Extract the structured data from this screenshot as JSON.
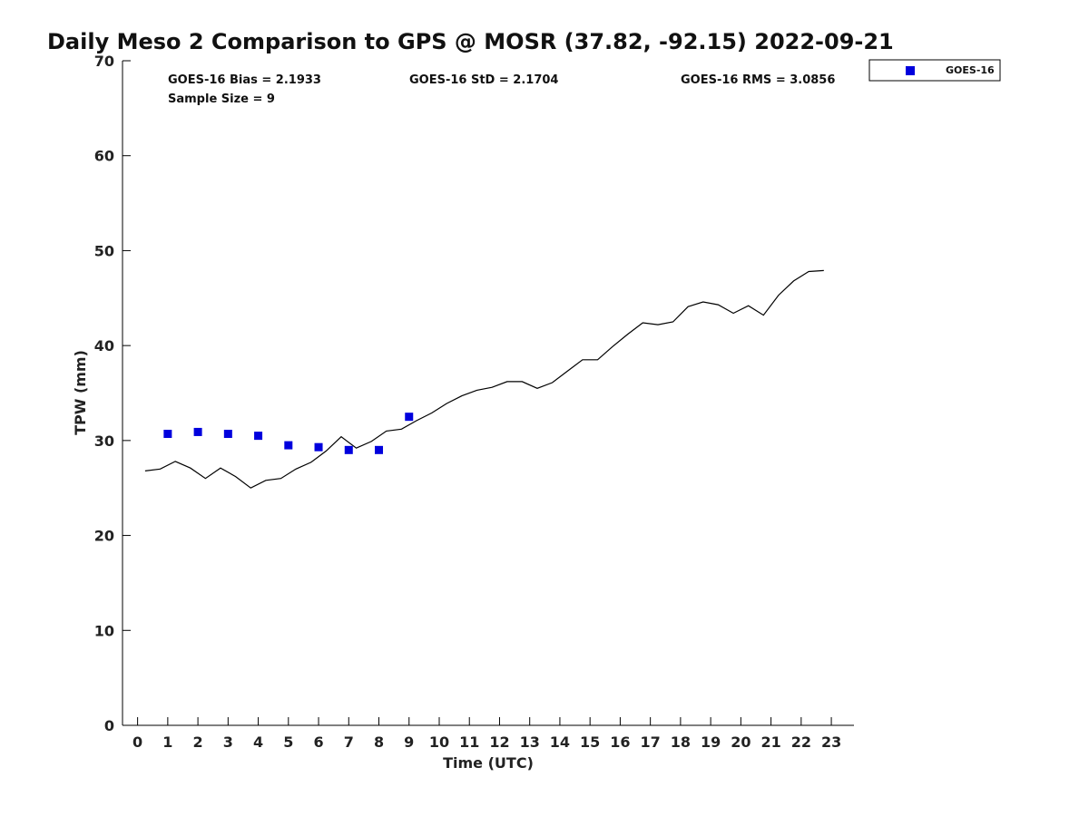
{
  "chart_data": {
    "type": "scatter",
    "title": "Daily Meso 2 Comparison to GPS @ MOSR (37.82, -92.15) 2022-09-21",
    "xlabel": "Time (UTC)",
    "ylabel": "TPW (mm)",
    "xlim": [
      -0.5,
      23.75
    ],
    "ylim": [
      0,
      70
    ],
    "xticks": [
      0,
      1,
      2,
      3,
      4,
      5,
      6,
      7,
      8,
      9,
      10,
      11,
      12,
      13,
      14,
      15,
      16,
      17,
      18,
      19,
      20,
      21,
      22,
      23
    ],
    "yticks": [
      0,
      10,
      20,
      30,
      40,
      50,
      60,
      70
    ],
    "grid": false,
    "legend_position": "top-right outside",
    "colors": {
      "goes": "#0000dd",
      "gps": "#000000"
    },
    "stats": {
      "bias": "GOES-16 Bias = 2.1933",
      "std": "GOES-16 StD = 2.1704",
      "rms": "GOES-16 RMS = 3.0856",
      "sample": "Sample Size = 9"
    },
    "series": [
      {
        "name": "GOES-16",
        "style": "square-markers",
        "x": [
          1,
          2,
          3,
          4,
          5,
          6,
          7,
          8,
          9
        ],
        "y": [
          30.7,
          30.9,
          30.7,
          30.5,
          29.5,
          29.3,
          29.0,
          29.0,
          32.5
        ]
      },
      {
        "name": "GPS",
        "style": "line",
        "x": [
          0.25,
          0.75,
          1.25,
          1.75,
          2.25,
          2.75,
          3.25,
          3.75,
          4.25,
          4.75,
          5.25,
          5.75,
          6.25,
          6.75,
          7.25,
          7.75,
          8.25,
          8.75,
          9.25,
          9.75,
          10.25,
          10.75,
          11.25,
          11.75,
          12.25,
          12.75,
          13.25,
          13.75,
          14.25,
          14.75,
          15.25,
          15.75,
          16.25,
          16.75,
          17.25,
          17.75,
          18.25,
          18.75,
          19.25,
          19.75,
          20.25,
          20.75,
          21.25,
          21.75,
          22.25,
          22.75
        ],
        "y": [
          26.8,
          27.0,
          27.8,
          27.1,
          26.0,
          27.1,
          26.2,
          25.0,
          25.8,
          26.0,
          27.0,
          27.7,
          28.9,
          30.4,
          29.2,
          29.9,
          31.0,
          31.2,
          32.1,
          32.9,
          33.9,
          34.7,
          35.3,
          35.6,
          36.2,
          36.2,
          35.5,
          36.1,
          37.3,
          38.5,
          38.5,
          39.9,
          41.2,
          42.4,
          42.2,
          42.5,
          44.1,
          44.6,
          44.3,
          43.4,
          44.2,
          43.2,
          45.3,
          46.8,
          47.8,
          47.9
        ]
      }
    ],
    "legend": [
      {
        "label": "GOES-16"
      }
    ]
  }
}
